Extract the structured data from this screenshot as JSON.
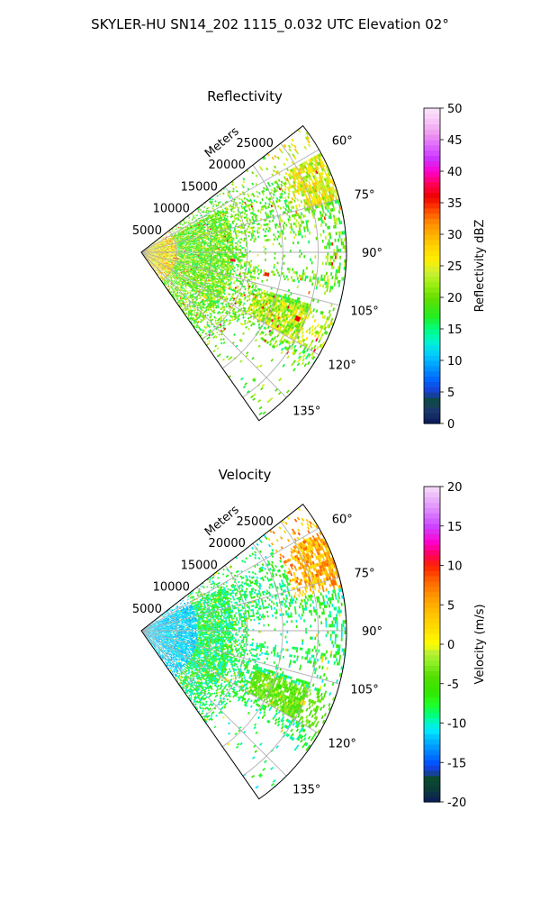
{
  "title": "SKYLER-HU  SN14_202  1115_0.032 UTC Elevation 02°",
  "chart_data": [
    {
      "type": "heatmap",
      "title": "Reflectivity",
      "projection": "polar sector",
      "radial_label": "Meters",
      "radial_ticks": [
        "5000",
        "10000",
        "15000",
        "20000",
        "25000"
      ],
      "radial_tick_values": [
        5000,
        10000,
        15000,
        20000,
        25000
      ],
      "rlim": [
        0,
        29000
      ],
      "angular_ticks": [
        "60°",
        "75°",
        "90°",
        "105°",
        "120°",
        "135°"
      ],
      "angular_tick_values": [
        60,
        75,
        90,
        105,
        120,
        135
      ],
      "theta_range_deg": [
        52,
        145
      ],
      "grid": true,
      "colorbar": {
        "label": "Reflectivity dBZ",
        "range": [
          0,
          50
        ],
        "ticks": [
          "0",
          "5",
          "10",
          "15",
          "20",
          "25",
          "30",
          "35",
          "40",
          "45",
          "50"
        ],
        "tick_values": [
          0,
          5,
          10,
          15,
          20,
          25,
          30,
          35,
          40,
          45,
          50
        ]
      },
      "dominant_range": [
        15,
        25
      ],
      "cells": [
        {
          "az": 64,
          "r": 26500,
          "value": 26
        },
        {
          "az": 68,
          "r": 25000,
          "value": 28
        },
        {
          "az": 110,
          "r": 21500,
          "value": 26
        },
        {
          "az": 113,
          "r": 24000,
          "value": 36
        },
        {
          "az": 116,
          "r": 20000,
          "value": 25
        },
        {
          "az": 125,
          "r": 11000,
          "value": 27
        },
        {
          "az": 100,
          "r": 5000,
          "value": 34
        },
        {
          "az": 95,
          "r": 13000,
          "value": 37
        },
        {
          "az": 100,
          "r": 18000,
          "value": 35
        },
        {
          "az": 92,
          "r": 800,
          "value": 32
        }
      ]
    },
    {
      "type": "heatmap",
      "title": "Velocity",
      "projection": "polar sector",
      "radial_label": "Meters",
      "radial_ticks": [
        "5000",
        "10000",
        "15000",
        "20000",
        "25000"
      ],
      "radial_tick_values": [
        5000,
        10000,
        15000,
        20000,
        25000
      ],
      "rlim": [
        0,
        29000
      ],
      "angular_ticks": [
        "60°",
        "75°",
        "90°",
        "105°",
        "120°",
        "135°"
      ],
      "angular_tick_values": [
        60,
        75,
        90,
        105,
        120,
        135
      ],
      "theta_range_deg": [
        52,
        145
      ],
      "grid": true,
      "colorbar": {
        "label": "Velocity (m/s)",
        "range": [
          -20,
          20
        ],
        "ticks": [
          "-20",
          "-15",
          "-10",
          "-5",
          "0",
          "5",
          "10",
          "15",
          "20"
        ],
        "tick_values": [
          -20,
          -15,
          -10,
          -5,
          0,
          5,
          10,
          15,
          20
        ]
      },
      "dominant_range": [
        -11,
        -5
      ],
      "cells": [
        {
          "az": 64,
          "r": 26500,
          "value": 2
        },
        {
          "az": 70,
          "r": 27500,
          "value": 7
        },
        {
          "az": 76,
          "r": 28000,
          "value": 8
        },
        {
          "az": 100,
          "r": 5000,
          "value": -12
        },
        {
          "az": 112,
          "r": 21000,
          "value": -6
        },
        {
          "az": 114,
          "r": 25000,
          "value": 2
        },
        {
          "az": 120,
          "r": 14000,
          "value": 1
        }
      ]
    }
  ]
}
